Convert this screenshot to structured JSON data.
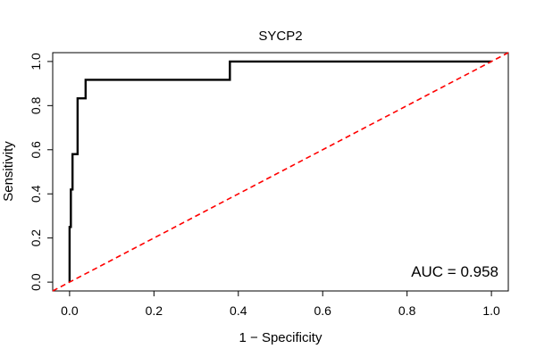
{
  "chart_data": {
    "type": "line",
    "title": "SYCP2",
    "xlabel": "1 − Specificity",
    "ylabel": "Sensitivity",
    "xlim": [
      -0.04,
      1.04
    ],
    "ylim": [
      -0.04,
      1.04
    ],
    "x_ticks": [
      0.0,
      0.2,
      0.4,
      0.6,
      0.8,
      1.0
    ],
    "x_tick_labels": [
      "0.0",
      "0.2",
      "0.4",
      "0.6",
      "0.8",
      "1.0"
    ],
    "y_ticks": [
      0.0,
      0.2,
      0.4,
      0.6,
      0.8,
      1.0
    ],
    "y_tick_labels": [
      "0.0",
      "0.2",
      "0.4",
      "0.6",
      "0.8",
      "1.0"
    ],
    "grid": false,
    "series": [
      {
        "color": "#000000",
        "style": "solid",
        "x": [
          0.0,
          0.0,
          0.003,
          0.003,
          0.007,
          0.007,
          0.019,
          0.019,
          0.038,
          0.038,
          0.38,
          0.38,
          1.0
        ],
        "y": [
          0.0,
          0.25,
          0.25,
          0.42,
          0.42,
          0.58,
          0.58,
          0.833,
          0.833,
          0.917,
          0.917,
          1.0,
          1.0
        ]
      },
      {
        "color": "#ff0000",
        "style": "dashed",
        "x": [
          -0.04,
          1.04
        ],
        "y": [
          -0.04,
          1.04
        ]
      }
    ],
    "annotations": [
      {
        "text": "AUC = 0.958",
        "position": "bottom-right"
      }
    ]
  }
}
